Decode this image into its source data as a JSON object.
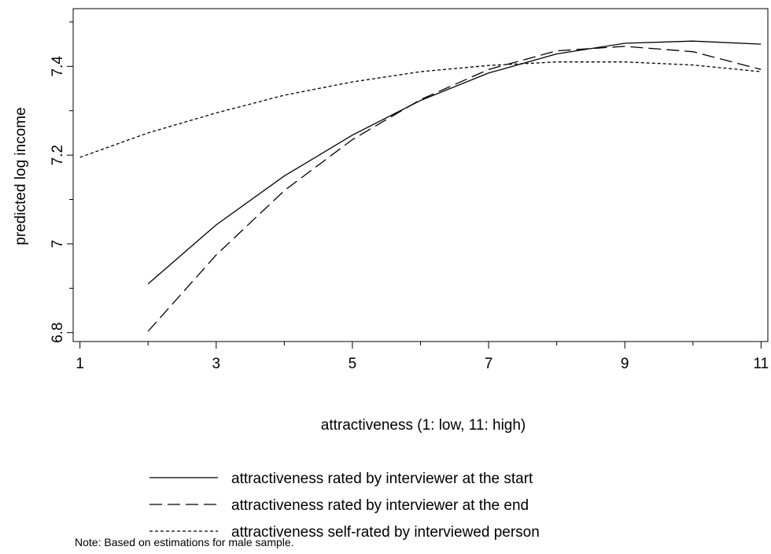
{
  "chart_data": {
    "type": "line",
    "xlabel": "attractiveness (1: low, 11: high)",
    "ylabel": "predicted log income",
    "xlim": [
      0.9,
      11.1
    ],
    "ylim": [
      6.78,
      7.53
    ],
    "x_ticks": [
      1,
      3,
      5,
      7,
      9,
      11
    ],
    "x_minor_ticks": [
      2,
      4,
      6,
      8,
      10
    ],
    "y_ticks": [
      6.8,
      7,
      7.2,
      7.4
    ],
    "y_tick_labels": [
      "6.8",
      "7",
      "7.2",
      "7.4"
    ],
    "y_minor_ticks": [
      6.9,
      7.1,
      7.3,
      7.5
    ],
    "grid": false,
    "legend_position": "bottom",
    "note": "Note: Based on estimations for male sample.",
    "series": [
      {
        "name": "attractiveness rated by interviewer at the start",
        "style": "solid",
        "x": [
          2,
          3,
          4,
          5,
          6,
          7,
          8,
          9,
          10,
          11
        ],
        "y": [
          6.91,
          7.043,
          7.153,
          7.245,
          7.323,
          7.385,
          7.428,
          7.452,
          7.457,
          7.45
        ]
      },
      {
        "name": "attractiveness rated by interviewer at the end",
        "style": "dashed",
        "x": [
          2,
          3,
          4,
          5,
          6,
          7,
          8,
          9,
          10,
          11
        ],
        "y": [
          6.803,
          6.975,
          7.12,
          7.235,
          7.325,
          7.393,
          7.435,
          7.445,
          7.433,
          7.393
        ]
      },
      {
        "name": "attractiveness self-rated by interviewed person",
        "style": "dotted",
        "x": [
          1,
          2,
          3,
          4,
          5,
          6,
          7,
          8,
          9,
          10,
          11
        ],
        "y": [
          7.195,
          7.25,
          7.295,
          7.335,
          7.365,
          7.388,
          7.402,
          7.41,
          7.41,
          7.403,
          7.388
        ]
      }
    ]
  }
}
